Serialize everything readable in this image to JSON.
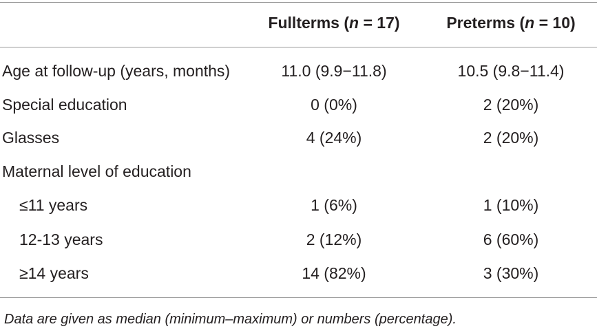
{
  "table": {
    "columns": [
      [
        "Fullterms (",
        "n",
        " = 17)"
      ],
      [
        "Preterms (",
        "n",
        " = 10)"
      ]
    ],
    "rows": [
      [
        "Age at follow-up (years, months)",
        "11.0 (9.9−11.8)",
        "10.5 (9.8−11.4)"
      ],
      [
        "Special education",
        "0 (0%)",
        "2 (20%)"
      ],
      [
        "Glasses",
        "4 (24%)",
        "2 (20%)"
      ],
      [
        "Maternal level of education"
      ],
      [
        "≤11 years",
        "1 (6%)",
        "1 (10%)"
      ],
      [
        "12-13 years",
        "2 (12%)",
        "6 (60%)"
      ],
      [
        "≥14 years",
        "14 (82%)",
        "3 (30%)"
      ]
    ],
    "indented_rows": [
      4,
      5,
      6
    ],
    "footnote": "Data are given as median (minimum–maximum) or numbers (percentage)."
  }
}
